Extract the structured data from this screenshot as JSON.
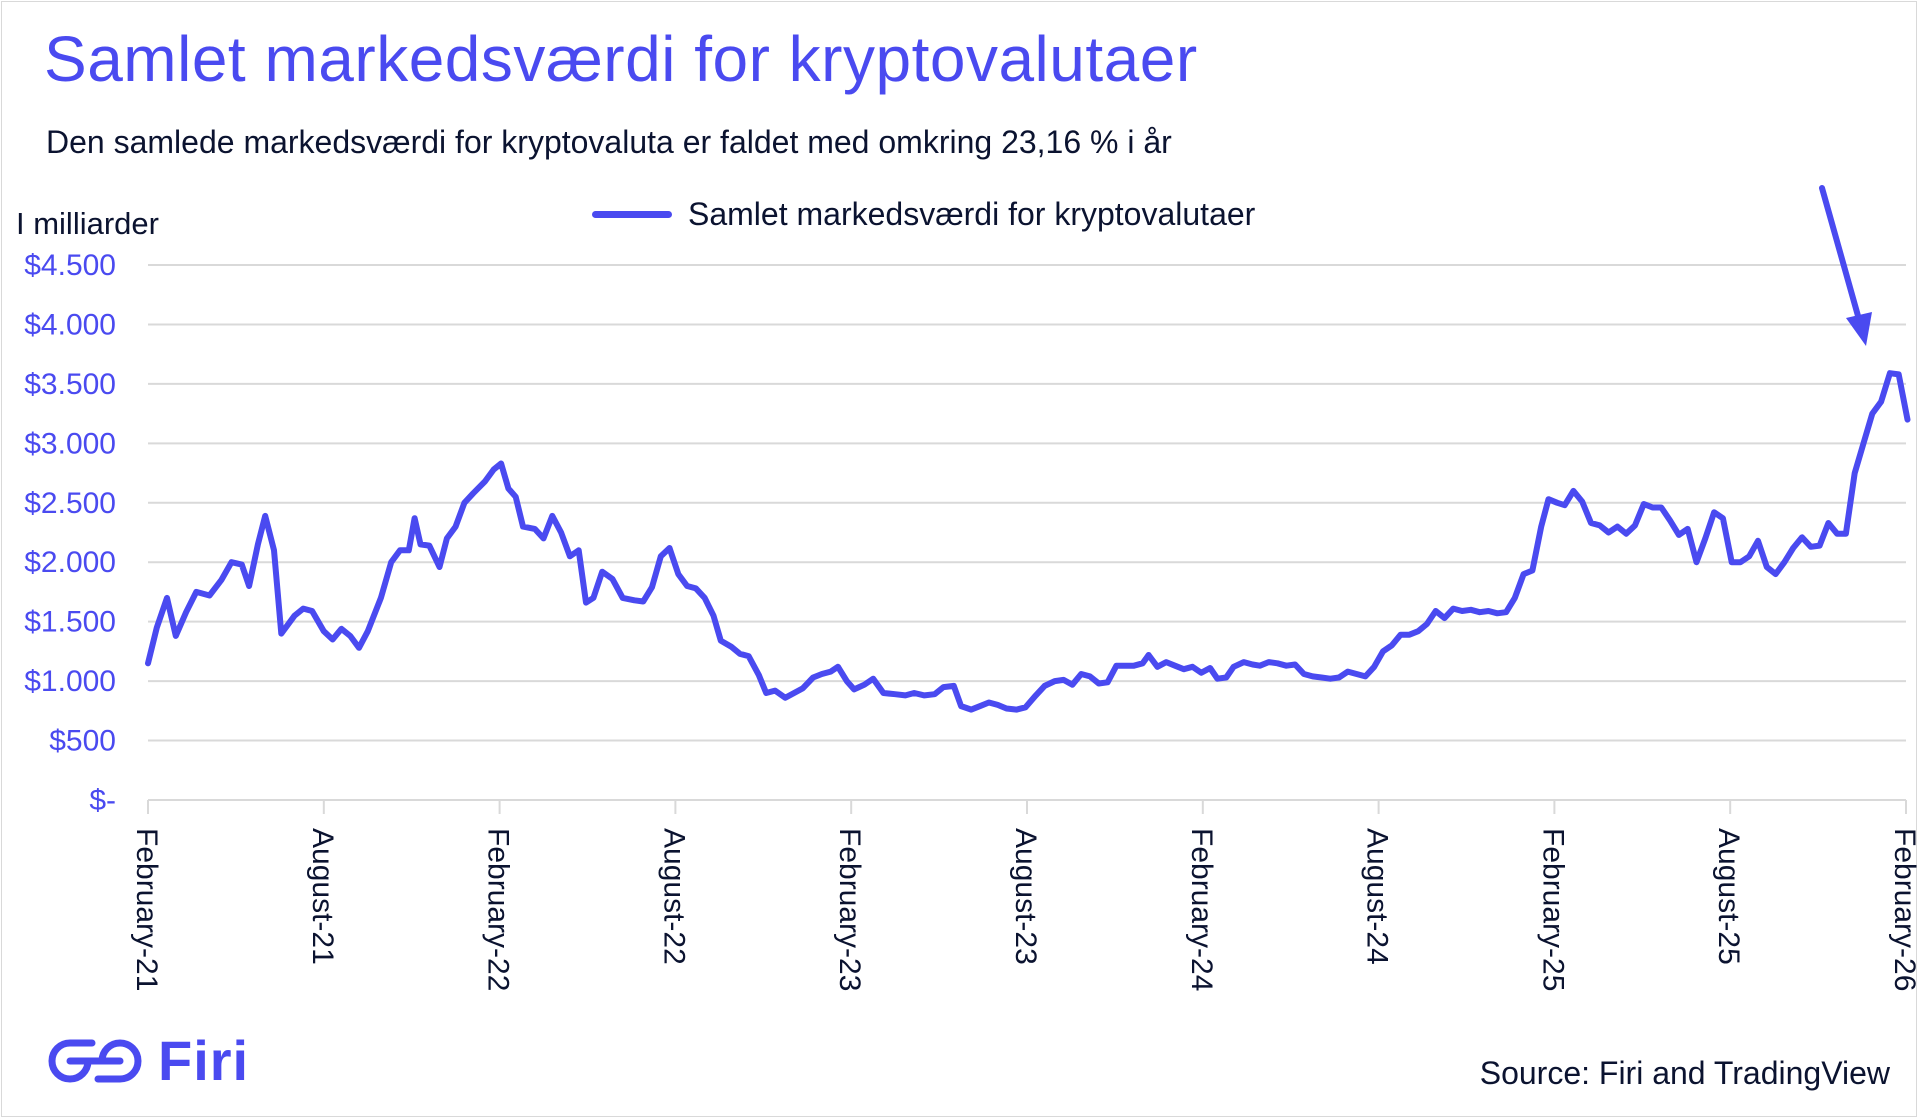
{
  "title": "Samlet markedsværdi for kryptovalutaer",
  "subtitle": "Den samlede markedsværdi for kryptovaluta er faldet med omkring 23,16 % i år",
  "unit_label": "I milliarder",
  "source": "Source: Firi and TradingView",
  "brand": {
    "name": "Firi",
    "logo_icon": "firi-logo-icon"
  },
  "colors": {
    "accent": "#4a4af0",
    "text": "#0b1330",
    "grid": "#d9d9d9"
  },
  "chart_data": {
    "type": "line",
    "title": "Samlet markedsværdi for kryptovalutaer",
    "ylabel": "I milliarder",
    "xlabel": "",
    "ylim": [
      0,
      4500
    ],
    "y_ticks": [
      0,
      500,
      1000,
      1500,
      2000,
      2500,
      3000,
      3500,
      4000,
      4500
    ],
    "y_tick_labels": [
      "$-",
      "$500",
      "$1.000",
      "$1.500",
      "$2.000",
      "$2.500",
      "$3.000",
      "$3.500",
      "$4.000",
      "$4.500"
    ],
    "x_range_months": [
      0,
      60
    ],
    "x_ticks": [
      0,
      6,
      12,
      18,
      24,
      30,
      36,
      42,
      48,
      54,
      60
    ],
    "x_tick_labels": [
      "February-21",
      "August-21",
      "February-22",
      "August-22",
      "February-23",
      "August-23",
      "February-24",
      "August-24",
      "February-25",
      "August-25",
      "February-26"
    ],
    "legend": {
      "position": "top-center",
      "entries": [
        "Samlet markedsværdi for kryptovalutaer"
      ]
    },
    "annotation": {
      "type": "arrow",
      "description": "downward arrow pointing to recent decline"
    },
    "series": [
      {
        "name": "Samlet markedsværdi for kryptovalutaer",
        "x_unit": "months since February 2021",
        "points": [
          [
            0.0,
            1150
          ],
          [
            0.3,
            1450
          ],
          [
            0.65,
            1700
          ],
          [
            0.95,
            1380
          ],
          [
            1.3,
            1580
          ],
          [
            1.65,
            1750
          ],
          [
            2.1,
            1720
          ],
          [
            2.5,
            1850
          ],
          [
            2.85,
            2000
          ],
          [
            3.2,
            1980
          ],
          [
            3.45,
            1800
          ],
          [
            3.75,
            2150
          ],
          [
            4.0,
            2390
          ],
          [
            4.3,
            2100
          ],
          [
            4.55,
            1400
          ],
          [
            5.0,
            1550
          ],
          [
            5.3,
            1610
          ],
          [
            5.6,
            1590
          ],
          [
            6.0,
            1420
          ],
          [
            6.3,
            1350
          ],
          [
            6.6,
            1440
          ],
          [
            6.9,
            1380
          ],
          [
            7.2,
            1280
          ],
          [
            7.5,
            1420
          ],
          [
            7.95,
            1700
          ],
          [
            8.3,
            2000
          ],
          [
            8.6,
            2100
          ],
          [
            8.9,
            2100
          ],
          [
            9.1,
            2370
          ],
          [
            9.3,
            2150
          ],
          [
            9.6,
            2140
          ],
          [
            9.95,
            1960
          ],
          [
            10.2,
            2200
          ],
          [
            10.5,
            2300
          ],
          [
            10.8,
            2500
          ],
          [
            11.1,
            2580
          ],
          [
            11.5,
            2680
          ],
          [
            11.8,
            2780
          ],
          [
            12.05,
            2830
          ],
          [
            12.3,
            2620
          ],
          [
            12.55,
            2550
          ],
          [
            12.8,
            2300
          ],
          [
            13.2,
            2280
          ],
          [
            13.5,
            2200
          ],
          [
            13.8,
            2390
          ],
          [
            14.1,
            2250
          ],
          [
            14.4,
            2050
          ],
          [
            14.7,
            2100
          ],
          [
            14.95,
            1660
          ],
          [
            15.2,
            1700
          ],
          [
            15.5,
            1920
          ],
          [
            15.85,
            1860
          ],
          [
            16.2,
            1700
          ],
          [
            16.6,
            1680
          ],
          [
            16.9,
            1670
          ],
          [
            17.2,
            1790
          ],
          [
            17.5,
            2050
          ],
          [
            17.8,
            2120
          ],
          [
            18.1,
            1900
          ],
          [
            18.4,
            1800
          ],
          [
            18.7,
            1780
          ],
          [
            19.0,
            1700
          ],
          [
            19.3,
            1550
          ],
          [
            19.55,
            1340
          ],
          [
            19.9,
            1290
          ],
          [
            20.2,
            1230
          ],
          [
            20.5,
            1210
          ],
          [
            20.85,
            1050
          ],
          [
            21.1,
            900
          ],
          [
            21.4,
            920
          ],
          [
            21.75,
            860
          ],
          [
            22.05,
            900
          ],
          [
            22.35,
            940
          ],
          [
            22.7,
            1030
          ],
          [
            23.0,
            1060
          ],
          [
            23.3,
            1080
          ],
          [
            23.55,
            1120
          ],
          [
            23.85,
            1000
          ],
          [
            24.1,
            930
          ],
          [
            24.45,
            970
          ],
          [
            24.75,
            1020
          ],
          [
            25.1,
            900
          ],
          [
            25.5,
            890
          ],
          [
            25.85,
            880
          ],
          [
            26.15,
            900
          ],
          [
            26.5,
            880
          ],
          [
            26.85,
            890
          ],
          [
            27.15,
            950
          ],
          [
            27.5,
            960
          ],
          [
            27.75,
            790
          ],
          [
            28.1,
            760
          ],
          [
            28.4,
            790
          ],
          [
            28.7,
            820
          ],
          [
            29.0,
            800
          ],
          [
            29.3,
            770
          ],
          [
            29.65,
            760
          ],
          [
            29.95,
            780
          ],
          [
            30.3,
            880
          ],
          [
            30.6,
            960
          ],
          [
            30.95,
            1000
          ],
          [
            31.25,
            1010
          ],
          [
            31.55,
            970
          ],
          [
            31.85,
            1060
          ],
          [
            32.15,
            1040
          ],
          [
            32.45,
            980
          ],
          [
            32.75,
            990
          ],
          [
            33.05,
            1130
          ],
          [
            33.35,
            1130
          ],
          [
            33.65,
            1130
          ],
          [
            33.95,
            1150
          ],
          [
            34.15,
            1220
          ],
          [
            34.45,
            1120
          ],
          [
            34.75,
            1160
          ],
          [
            35.05,
            1130
          ],
          [
            35.35,
            1100
          ],
          [
            35.65,
            1120
          ],
          [
            35.95,
            1070
          ],
          [
            36.25,
            1110
          ],
          [
            36.5,
            1020
          ],
          [
            36.8,
            1030
          ],
          [
            37.05,
            1120
          ],
          [
            37.4,
            1160
          ],
          [
            37.7,
            1140
          ],
          [
            37.95,
            1130
          ],
          [
            38.25,
            1160
          ],
          [
            38.55,
            1150
          ],
          [
            38.85,
            1130
          ],
          [
            39.15,
            1140
          ],
          [
            39.45,
            1060
          ],
          [
            39.75,
            1040
          ],
          [
            40.05,
            1030
          ],
          [
            40.35,
            1020
          ],
          [
            40.65,
            1030
          ],
          [
            40.95,
            1080
          ],
          [
            41.25,
            1060
          ],
          [
            41.55,
            1040
          ],
          [
            41.85,
            1120
          ],
          [
            42.15,
            1250
          ],
          [
            42.45,
            1300
          ],
          [
            42.75,
            1390
          ],
          [
            43.05,
            1390
          ],
          [
            43.35,
            1420
          ],
          [
            43.65,
            1480
          ],
          [
            43.95,
            1590
          ],
          [
            44.25,
            1530
          ],
          [
            44.55,
            1610
          ],
          [
            44.85,
            1590
          ],
          [
            45.15,
            1600
          ],
          [
            45.45,
            1580
          ],
          [
            45.75,
            1590
          ],
          [
            46.05,
            1570
          ],
          [
            46.35,
            1580
          ],
          [
            46.65,
            1700
          ],
          [
            46.95,
            1900
          ],
          [
            47.25,
            1930
          ],
          [
            47.55,
            2300
          ],
          [
            47.8,
            2530
          ],
          [
            48.1,
            2500
          ],
          [
            48.35,
            2480
          ],
          [
            48.65,
            2600
          ],
          [
            48.95,
            2510
          ],
          [
            49.25,
            2330
          ],
          [
            49.55,
            2310
          ],
          [
            49.85,
            2250
          ],
          [
            50.15,
            2300
          ],
          [
            50.45,
            2240
          ],
          [
            50.75,
            2310
          ],
          [
            51.05,
            2490
          ],
          [
            51.35,
            2460
          ],
          [
            51.65,
            2460
          ],
          [
            51.95,
            2350
          ],
          [
            52.25,
            2230
          ],
          [
            52.55,
            2280
          ],
          [
            52.85,
            2000
          ],
          [
            53.15,
            2200
          ],
          [
            53.45,
            2420
          ],
          [
            53.75,
            2370
          ],
          [
            54.05,
            2000
          ],
          [
            54.35,
            2000
          ],
          [
            54.65,
            2050
          ],
          [
            54.95,
            2180
          ],
          [
            55.25,
            1960
          ],
          [
            55.55,
            1900
          ],
          [
            55.85,
            2000
          ],
          [
            56.15,
            2120
          ],
          [
            56.45,
            2210
          ],
          [
            56.75,
            2130
          ],
          [
            57.05,
            2140
          ],
          [
            57.35,
            2330
          ],
          [
            57.65,
            2240
          ],
          [
            57.95,
            2240
          ],
          [
            58.25,
            2750
          ],
          [
            58.55,
            3000
          ],
          [
            58.85,
            3250
          ],
          [
            59.15,
            3350
          ],
          [
            59.45,
            3590
          ],
          [
            59.75,
            3580
          ],
          [
            60.05,
            3200
          ]
        ]
      }
    ]
  }
}
